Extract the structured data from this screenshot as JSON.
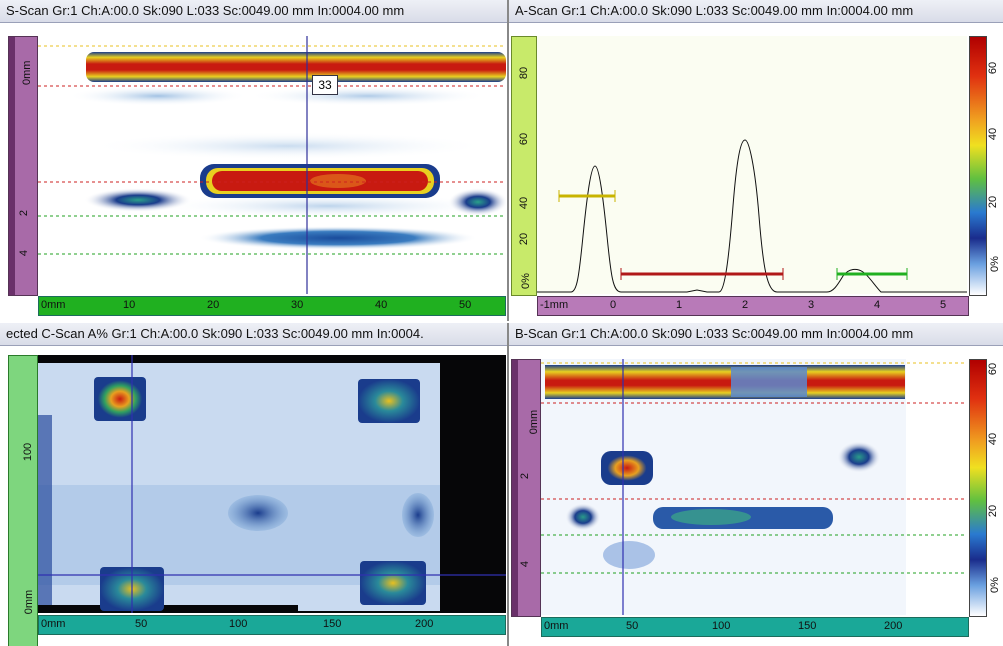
{
  "panels": {
    "sscan": {
      "title": "S-Scan Gr:1 Ch:A:00.0 Sk:090 L:033 Sc:0049.00 mm In:0004.00 mm",
      "cursor_label": "33",
      "v_ticks": [
        "0mm",
        "2",
        "4"
      ],
      "h_ticks": [
        "0mm",
        "10",
        "20",
        "30",
        "40",
        "50"
      ]
    },
    "ascan": {
      "title": "A-Scan Gr:1 Ch:A:00.0 Sk:090 L:033 Sc:0049.00 mm In:0004.00 mm",
      "amp_ticks": [
        "80",
        "60",
        "40",
        "20",
        "0%"
      ],
      "h_ticks": [
        "-1mm",
        "0",
        "1",
        "2",
        "3",
        "4",
        "5"
      ],
      "gate_colors": [
        "#c8b400",
        "#b01818",
        "#20b020"
      ]
    },
    "cscan": {
      "title": "ected C-Scan A% Gr:1 Ch:A:00.0 Sk:090 L:033 Sc:0049.00 mm In:0004.",
      "v_ticks": [
        "100",
        "0mm"
      ],
      "h_ticks": [
        "0mm",
        "50",
        "100",
        "150",
        "200"
      ]
    },
    "bscan": {
      "title": "B-Scan Gr:1 Ch:A:00.0 Sk:090 L:033 Sc:0049.00 mm In:0004.00 mm",
      "v_ticks": [
        "0mm",
        "2",
        "4"
      ],
      "h_ticks": [
        "0mm",
        "50",
        "100",
        "150",
        "200"
      ]
    }
  },
  "color_scale": {
    "ticks": [
      "60",
      "40",
      "20",
      "0%"
    ]
  }
}
